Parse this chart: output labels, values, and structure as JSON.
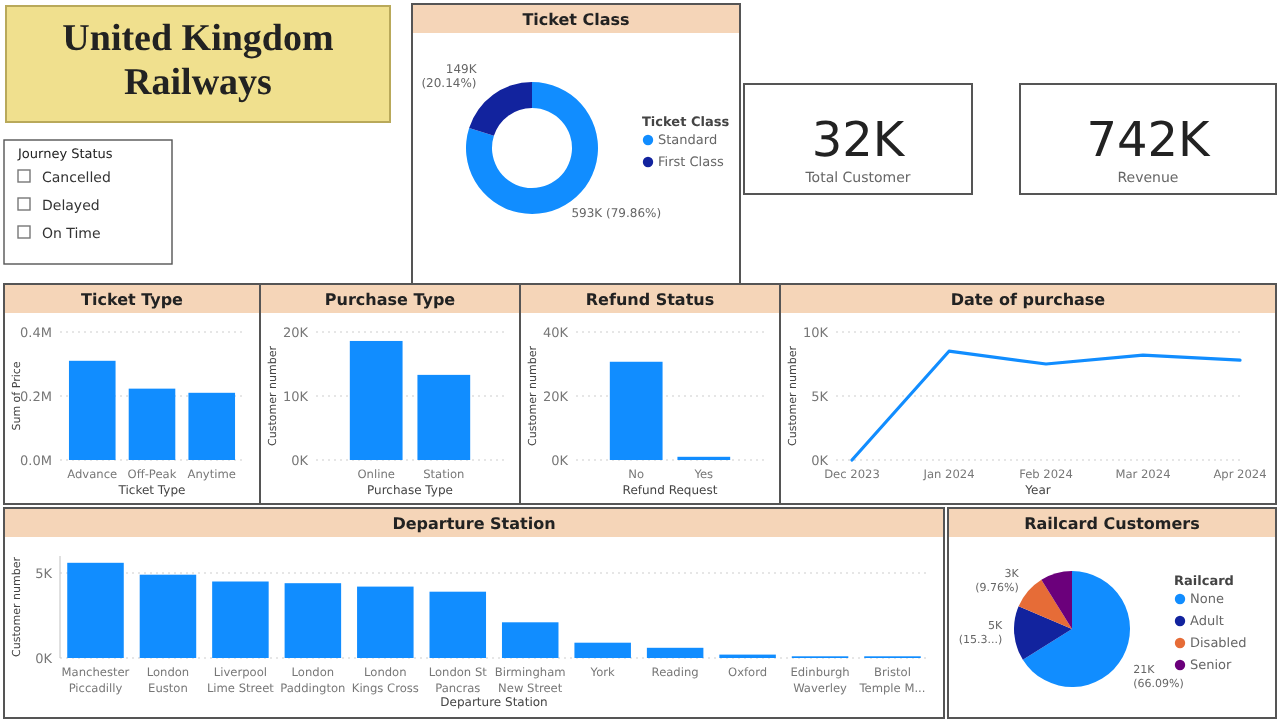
{
  "chart_data": [
    {
      "type": "other",
      "title": "United Kingdom Railways"
    },
    {
      "type": "donut",
      "title": "Ticket Class",
      "legend_title": "Ticket Class",
      "legend": "right",
      "categories": [
        "Standard",
        "First Class"
      ],
      "values": [
        593000,
        149000
      ],
      "colors": [
        "#118dff",
        "#12239e"
      ],
      "value_labels": [
        "593K (79.86%)",
        "149K (20.14%)"
      ]
    },
    {
      "type": "other",
      "annotations": [
        "32K",
        "Total Customer"
      ]
    },
    {
      "type": "other",
      "annotations": [
        "742K",
        "Revenue"
      ]
    },
    {
      "type": "other",
      "title": "Journey Status",
      "annotations": [
        "Cancelled",
        "Delayed",
        "On Time"
      ]
    },
    {
      "type": "bar",
      "title": "Ticket Type",
      "xlabel": "Ticket Type",
      "ylabel": "Sum of Price",
      "categories": [
        "Advance",
        "Off-Peak",
        "Anytime"
      ],
      "values": [
        0.31,
        0.223,
        0.21
      ],
      "color": "#118dff",
      "ylim": [
        0,
        0.4
      ],
      "yticks": [
        {
          "value": 0,
          "label": "0.0M"
        },
        {
          "value": 0.2,
          "label": "0.2M"
        },
        {
          "value": 0.4,
          "label": "0.4M"
        }
      ],
      "grid": "y"
    },
    {
      "type": "bar",
      "title": "Purchase Type",
      "xlabel": "Purchase Type",
      "ylabel": "Customer number",
      "categories": [
        "Online",
        "Station"
      ],
      "values": [
        18600,
        13300
      ],
      "color": "#118dff",
      "ylim": [
        0,
        20000
      ],
      "yticks": [
        {
          "value": 0,
          "label": "0K"
        },
        {
          "value": 10000,
          "label": "10K"
        },
        {
          "value": 20000,
          "label": "20K"
        }
      ],
      "grid": "y"
    },
    {
      "type": "bar",
      "title": "Refund Status",
      "xlabel": "Refund Request",
      "ylabel": "Customer number",
      "categories": [
        "No",
        "Yes"
      ],
      "values": [
        30700,
        1000
      ],
      "color": "#118dff",
      "ylim": [
        0,
        40000
      ],
      "yticks": [
        {
          "value": 0,
          "label": "0K"
        },
        {
          "value": 20000,
          "label": "20K"
        },
        {
          "value": 40000,
          "label": "40K"
        }
      ],
      "grid": "y"
    },
    {
      "type": "line",
      "title": "Date of purchase",
      "xlabel": "Year",
      "ylabel": "Customer number",
      "categories": [
        "Dec 2023",
        "Jan 2024",
        "Feb 2024",
        "Mar 2024",
        "Apr 2024"
      ],
      "values": [
        0,
        8500,
        7500,
        8200,
        7800
      ],
      "color": "#118dff",
      "ylim": [
        0,
        10000
      ],
      "yticks": [
        {
          "value": 0,
          "label": "0K"
        },
        {
          "value": 5000,
          "label": "5K"
        },
        {
          "value": 10000,
          "label": "10K"
        }
      ],
      "grid": "y",
      "marker": "none",
      "line_style": "solid"
    },
    {
      "type": "bar",
      "title": "Departure Station",
      "xlabel": "Departure Station",
      "ylabel": "Customer number",
      "categories": [
        "Manchester Piccadilly",
        "London Euston",
        "Liverpool Lime Street",
        "London Paddington",
        "London Kings Cross",
        "London St Pancras",
        "Birmingham New Street",
        "York",
        "Reading",
        "Oxford",
        "Edinburgh Waverley",
        "Bristol Temple M..."
      ],
      "values": [
        5600,
        4900,
        4500,
        4400,
        4200,
        3900,
        2100,
        900,
        600,
        200,
        100,
        100
      ],
      "color": "#118dff",
      "ylim": [
        0,
        6000
      ],
      "yticks": [
        {
          "value": 0,
          "label": "0K"
        },
        {
          "value": 5000,
          "label": "5K"
        }
      ],
      "grid": "y"
    },
    {
      "type": "pie",
      "title": "Railcard Customers",
      "legend_title": "Railcard",
      "legend": "right",
      "categories": [
        "None",
        "Adult",
        "Disabled",
        "Senior"
      ],
      "values": [
        66.09,
        15.3,
        9.76,
        8.85
      ],
      "colors": [
        "#118dff",
        "#12239e",
        "#e66c37",
        "#6b007b"
      ],
      "value_labels": [
        "21K (66.09%)",
        "5K (15.3...)",
        "3K (9.76%)",
        null
      ]
    }
  ]
}
